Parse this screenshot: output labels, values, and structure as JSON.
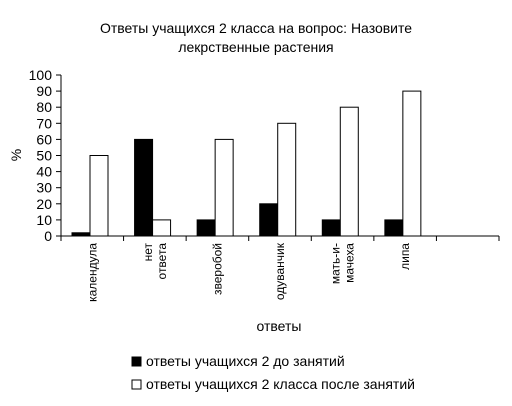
{
  "chart_data": {
    "type": "bar",
    "title_lines": [
      "Ответы учащихся 2 класса на вопрос: Назовите",
      "лекрственные растения"
    ],
    "xlabel": "ответы",
    "ylabel": "%",
    "ylim": [
      0,
      100
    ],
    "yticks": [
      0,
      10,
      20,
      30,
      40,
      50,
      60,
      70,
      80,
      90,
      100
    ],
    "categories": [
      [
        "календула"
      ],
      [
        "нет",
        "ответа"
      ],
      [
        "зверобой"
      ],
      [
        "одуванчик"
      ],
      [
        "мать-и-",
        "мачеха"
      ],
      [
        "липа"
      ]
    ],
    "slots": 7,
    "series": [
      {
        "name": "ответы учащихся 2 до занятий",
        "color": "#000000",
        "values": [
          2,
          60,
          10,
          20,
          10,
          10
        ]
      },
      {
        "name": "ответы учащихся 2 класса после занятий",
        "color": "#ffffff",
        "values": [
          50,
          10,
          60,
          70,
          80,
          90
        ]
      }
    ],
    "grid": false,
    "legend_position": "bottom"
  }
}
